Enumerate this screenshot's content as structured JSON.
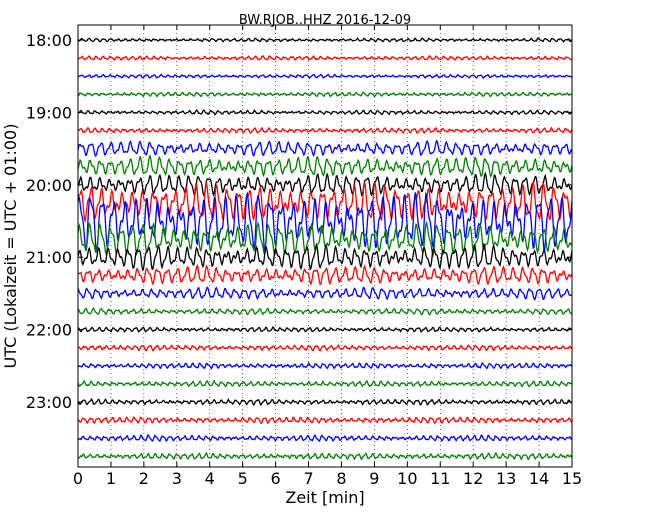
{
  "chart_data": {
    "type": "line",
    "title": "BW.RJOB..HHZ 2016-12-09",
    "xlabel": "Zeit  [min]",
    "ylabel": "UTC (Lokalzeit = UTC + 01:00)",
    "xlim": [
      0,
      15
    ],
    "x_ticks": [
      "0",
      "1",
      "2",
      "3",
      "4",
      "5",
      "6",
      "7",
      "8",
      "9",
      "10",
      "11",
      "12",
      "13",
      "14",
      "15"
    ],
    "y_ticks": [
      {
        "label": "18:00",
        "trace_index": 0
      },
      {
        "label": "19:00",
        "trace_index": 4
      },
      {
        "label": "20:00",
        "trace_index": 8
      },
      {
        "label": "21:00",
        "trace_index": 12
      },
      {
        "label": "22:00",
        "trace_index": 16
      },
      {
        "label": "23:00",
        "trace_index": 20
      }
    ],
    "trace_minutes": 15,
    "grid": "vertical dotted lines at each minute",
    "color_cycle": [
      "#000000",
      "#ff0000",
      "#0000ff",
      "#008000"
    ],
    "traces": [
      {
        "start": "18:00",
        "amplitude": 0.1,
        "period_min": 0.22
      },
      {
        "start": "18:15",
        "amplitude": 0.12,
        "period_min": 0.22
      },
      {
        "start": "18:30",
        "amplitude": 0.1,
        "period_min": 0.22
      },
      {
        "start": "18:45",
        "amplitude": 0.12,
        "period_min": 0.22
      },
      {
        "start": "19:00",
        "amplitude": 0.12,
        "period_min": 0.22
      },
      {
        "start": "19:15",
        "amplitude": 0.15,
        "period_min": 0.22
      },
      {
        "start": "19:30",
        "amplitude": 0.45,
        "period_min": 0.3
      },
      {
        "start": "19:45",
        "amplitude": 0.6,
        "period_min": 0.3
      },
      {
        "start": "20:00",
        "amplitude": 0.65,
        "period_min": 0.3
      },
      {
        "start": "20:15",
        "amplitude": 1.2,
        "period_min": 0.32
      },
      {
        "start": "20:30",
        "amplitude": 1.8,
        "period_min": 0.34
      },
      {
        "start": "20:45",
        "amplitude": 1.0,
        "period_min": 0.32
      },
      {
        "start": "21:00",
        "amplitude": 0.75,
        "period_min": 0.3
      },
      {
        "start": "21:15",
        "amplitude": 0.55,
        "period_min": 0.3
      },
      {
        "start": "21:30",
        "amplitude": 0.35,
        "period_min": 0.28
      },
      {
        "start": "21:45",
        "amplitude": 0.18,
        "period_min": 0.24
      },
      {
        "start": "22:00",
        "amplitude": 0.14,
        "period_min": 0.22
      },
      {
        "start": "22:15",
        "amplitude": 0.16,
        "period_min": 0.22
      },
      {
        "start": "22:30",
        "amplitude": 0.16,
        "period_min": 0.22
      },
      {
        "start": "22:45",
        "amplitude": 0.16,
        "period_min": 0.22
      },
      {
        "start": "23:00",
        "amplitude": 0.16,
        "period_min": 0.22
      },
      {
        "start": "23:15",
        "amplitude": 0.18,
        "period_min": 0.22
      },
      {
        "start": "23:30",
        "amplitude": 0.18,
        "period_min": 0.22
      },
      {
        "start": "23:45",
        "amplitude": 0.18,
        "period_min": 0.22
      }
    ]
  }
}
